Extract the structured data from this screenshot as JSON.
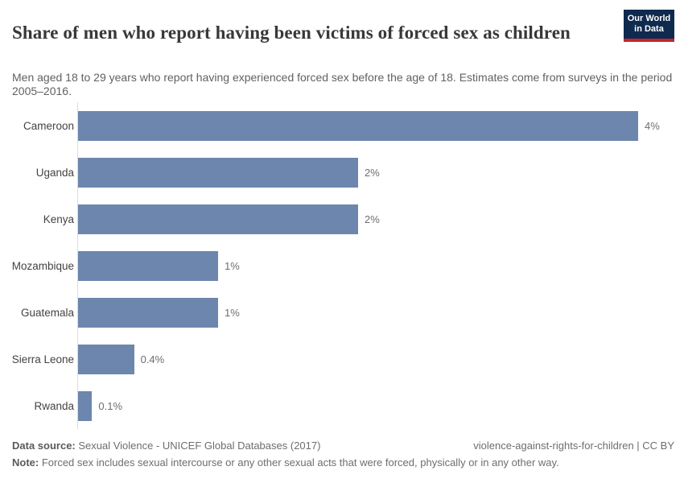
{
  "header": {
    "title": "Share of men who report having been victims of forced sex as children",
    "subtitle": "Men aged 18 to 29 years who report having experienced forced sex before the age of 18. Estimates come from surveys in the period 2005–2016.",
    "logo": {
      "line1": "Our World",
      "line2": "in Data",
      "bg_color": "#0e2a4e",
      "stripe_color": "#c0272d"
    }
  },
  "chart_data": {
    "type": "bar",
    "orientation": "horizontal",
    "title": "Share of men who report having been victims of forced sex as children",
    "categories": [
      "Cameroon",
      "Uganda",
      "Kenya",
      "Mozambique",
      "Guatemala",
      "Sierra Leone",
      "Rwanda"
    ],
    "values": [
      4,
      2,
      2,
      1,
      1,
      0.4,
      0.1
    ],
    "value_labels": [
      "4%",
      "2%",
      "2%",
      "1%",
      "1%",
      "0.4%",
      "0.1%"
    ],
    "unit": "%",
    "xlim": [
      0,
      4
    ],
    "grid": false,
    "legend": "none",
    "bar_color": "#6d86ae",
    "axis_line_color": "#dcdcdc"
  },
  "footer": {
    "datasource_label": "Data source:",
    "datasource_text": " Sexual Violence - UNICEF Global Databases (2017)",
    "license": "violence-against-rights-for-children | CC BY",
    "note_label": "Note:",
    "note_text": " Forced sex includes sexual intercourse or any other sexual acts that were forced, physically or in any other way."
  }
}
